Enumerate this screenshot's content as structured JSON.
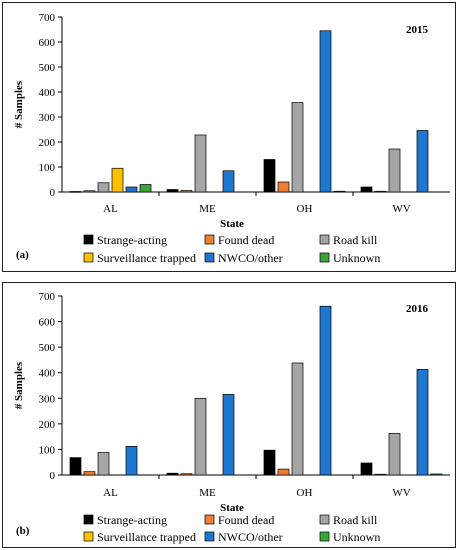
{
  "chart_data": [
    {
      "type": "bar",
      "panel_label": "(a)",
      "year_label": "2015",
      "xlabel": "State",
      "ylabel": "# Samples",
      "ylim": [
        0,
        700
      ],
      "yticks": [
        0,
        100,
        200,
        300,
        400,
        500,
        600,
        700
      ],
      "categories": [
        "AL",
        "ME",
        "OH",
        "WV"
      ],
      "series": [
        {
          "name": "Strange-acting",
          "color": "#000000",
          "values": [
            2,
            10,
            130,
            20
          ]
        },
        {
          "name": "Found dead",
          "color": "#ED7D31",
          "values": [
            5,
            6,
            40,
            3
          ]
        },
        {
          "name": "Road kill",
          "color": "#A5A5A5",
          "values": [
            37,
            228,
            358,
            172
          ]
        },
        {
          "name": "Surveillance trapped",
          "color": "#FFC000",
          "values": [
            95,
            0,
            0,
            0
          ]
        },
        {
          "name": "NWCO/other",
          "color": "#1F77D0",
          "values": [
            20,
            85,
            645,
            246
          ]
        },
        {
          "name": "Unknown",
          "color": "#3AA63A",
          "values": [
            30,
            0,
            3,
            0
          ]
        }
      ],
      "legend": [
        "Strange-acting",
        "Found dead",
        "Road kill",
        "Surveillance trapped",
        "NWCO/other",
        "Unknown"
      ],
      "legend_position": "bottom"
    },
    {
      "type": "bar",
      "panel_label": "(b)",
      "year_label": "2016",
      "xlabel": "State",
      "ylabel": "# Samples",
      "ylim": [
        0,
        700
      ],
      "yticks": [
        0,
        100,
        200,
        300,
        400,
        500,
        600,
        700
      ],
      "categories": [
        "AL",
        "ME",
        "OH",
        "WV"
      ],
      "series": [
        {
          "name": "Strange-acting",
          "color": "#000000",
          "values": [
            68,
            7,
            97,
            47
          ]
        },
        {
          "name": "Found dead",
          "color": "#ED7D31",
          "values": [
            13,
            5,
            23,
            3
          ]
        },
        {
          "name": "Road kill",
          "color": "#A5A5A5",
          "values": [
            88,
            300,
            438,
            163
          ]
        },
        {
          "name": "Surveillance trapped",
          "color": "#FFC000",
          "values": [
            0,
            0,
            0,
            0
          ]
        },
        {
          "name": "NWCO/other",
          "color": "#1F77D0",
          "values": [
            112,
            315,
            660,
            413
          ]
        },
        {
          "name": "Unknown",
          "color": "#3AA63A",
          "values": [
            0,
            0,
            0,
            4
          ]
        }
      ],
      "legend": [
        "Strange-acting",
        "Found dead",
        "Road kill",
        "Surveillance trapped",
        "NWCO/other",
        "Unknown"
      ],
      "legend_position": "bottom"
    }
  ]
}
